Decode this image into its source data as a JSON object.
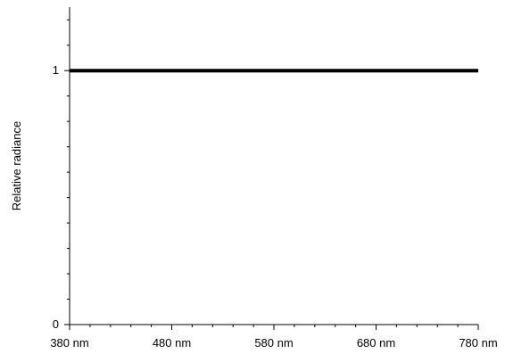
{
  "chart_data": {
    "type": "line",
    "ylabel": "Relative radiance",
    "xlim": [
      380,
      780
    ],
    "ylim": [
      0,
      1.25
    ],
    "x_ticks": [
      {
        "value": 380,
        "label": "380 nm"
      },
      {
        "value": 480,
        "label": "480 nm"
      },
      {
        "value": 580,
        "label": "580 nm"
      },
      {
        "value": 680,
        "label": "680 nm"
      },
      {
        "value": 780,
        "label": "780 nm"
      }
    ],
    "y_ticks": [
      {
        "value": 0,
        "label": "0"
      },
      {
        "value": 1,
        "label": "1"
      }
    ],
    "x_minor_step": 20,
    "y_minor_step": 0.1,
    "grid": false,
    "series": [
      {
        "x": [
          380,
          780
        ],
        "values": [
          1,
          1
        ],
        "color": "#000000"
      }
    ]
  }
}
